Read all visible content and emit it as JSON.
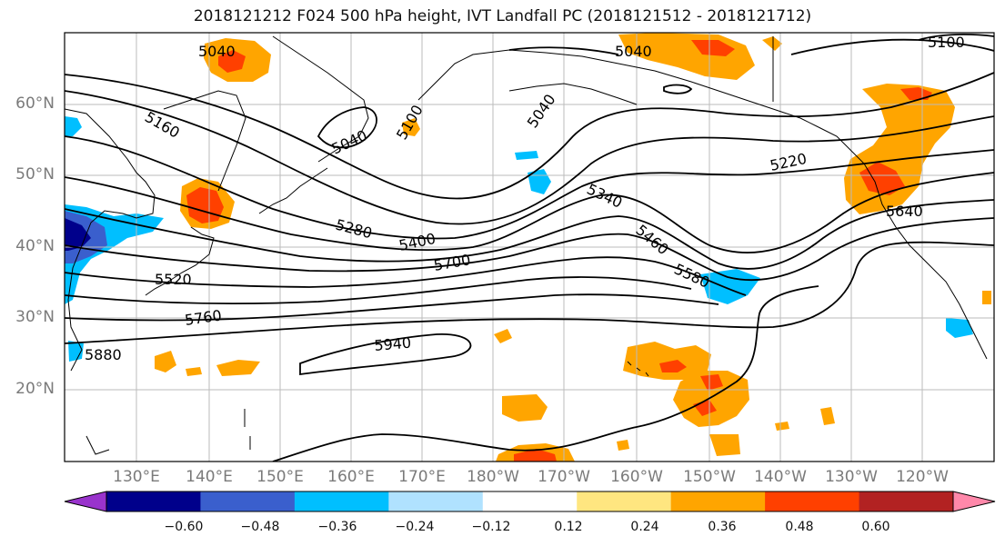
{
  "title": "2018121212 F024 500 hPa height, IVT Landfall PC (2018121512 - 2018121712)",
  "lat_labels": [
    "60°N",
    "50°N",
    "40°N",
    "30°N",
    "20°N"
  ],
  "lon_labels": [
    "130°E",
    "140°E",
    "150°E",
    "160°E",
    "170°E",
    "180°W",
    "170°W",
    "160°W",
    "150°W",
    "140°W",
    "130°W",
    "120°W"
  ],
  "contour_labels": [
    "5040",
    "5040",
    "5040",
    "5040",
    "5100",
    "5100",
    "5160",
    "5220",
    "5280",
    "5340",
    "5400",
    "5460",
    "5520",
    "5580",
    "5640",
    "5700",
    "5760",
    "5880",
    "5940"
  ],
  "colorbar": {
    "ticks": [
      "−0.60",
      "−0.48",
      "−0.36",
      "−0.24",
      "−0.12",
      "0.12",
      "0.24",
      "0.36",
      "0.48",
      "0.60"
    ],
    "colors": [
      "#9933cc",
      "#00008b",
      "#3a5fcd",
      "#00bfff",
      "#b0e2ff",
      "#ffffff",
      "#ffe680",
      "#ffa500",
      "#ff4000",
      "#b22222",
      "#ff88aa"
    ]
  },
  "colors": {
    "positive_low": "#ffe680",
    "positive_mid": "#ffa500",
    "positive_high": "#ff4000",
    "negative_light": "#b0e2ff",
    "negative_mid": "#00bfff",
    "negative_strong": "#3a5fcd",
    "negative_max": "#00008b"
  }
}
